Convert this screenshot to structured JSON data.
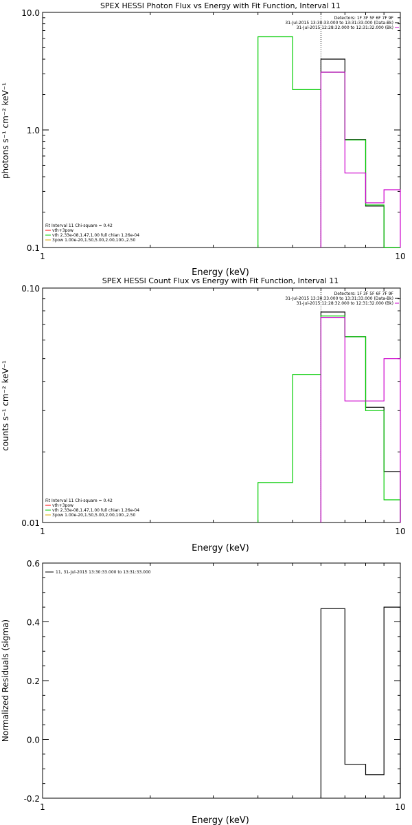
{
  "chart_data": [
    {
      "type": "line",
      "step": true,
      "title": "SPEX HESSI Photon Flux vs Energy with Fit Function, Interval 11",
      "xlabel": "Energy (keV)",
      "ylabel": "photons s⁻¹ cm⁻² keV⁻¹",
      "xscale": "log",
      "yscale": "log",
      "xlim": [
        1,
        10
      ],
      "ylim": [
        0.1,
        10
      ],
      "xticks": [
        {
          "v": 1,
          "label": "1"
        },
        {
          "v": 10,
          "label": "10"
        }
      ],
      "yticks": [
        {
          "v": 0.1,
          "label": "0.1"
        },
        {
          "v": 1,
          "label": "1.0"
        },
        {
          "v": 10,
          "label": "10.0"
        }
      ],
      "vline": 6,
      "header_lines": [
        "Detectors: 1F 3F 5F 6F 7F 9F",
        "31-Jul-2015 13:30:33.000 to 13:31:33.000 (Data-Bk)",
        "31-Jul-2015 12:28:32.000 to 12:31:32.000 (Bk)"
      ],
      "legend_lines": [
        "Fit Interval 11    Chi-square = 0.42",
        "vth+3pow",
        "vth 2.33e-08,1.47,1.00  full chian 1.26e-04",
        "3pow 1.00e-20,1.50,5.00,2.00,100.,2.50"
      ],
      "series": [
        {
          "color": "#000000",
          "edges": [
            6,
            7,
            8,
            9,
            10
          ],
          "values": [
            4.0,
            0.83,
            0.225,
            0.1
          ]
        },
        {
          "color": "#00cc00",
          "edges": [
            4,
            5,
            6,
            7,
            8,
            9,
            10
          ],
          "values": [
            6.2,
            2.2,
            3.1,
            0.82,
            0.23,
            0.1
          ]
        },
        {
          "color": "#cc00cc",
          "edges": [
            6,
            7,
            8,
            9,
            10
          ],
          "values": [
            3.1,
            0.43,
            0.24,
            0.31
          ]
        }
      ]
    },
    {
      "type": "line",
      "step": true,
      "title": "SPEX HESSI Count Flux vs Energy with Fit Function, Interval 11",
      "xlabel": "Energy (keV)",
      "ylabel": "counts s⁻¹ cm⁻² keV⁻¹",
      "xscale": "log",
      "yscale": "log",
      "xlim": [
        1,
        10
      ],
      "ylim": [
        0.01,
        0.1
      ],
      "xticks": [
        {
          "v": 1,
          "label": "1"
        },
        {
          "v": 10,
          "label": "10"
        }
      ],
      "yticks": [
        {
          "v": 0.01,
          "label": "0.01"
        },
        {
          "v": 0.1,
          "label": "0.10"
        }
      ],
      "vline": 6,
      "header_lines": [
        "Detectors: 1F 3F 5F 6F 7F 9F",
        "31-Jul-2015 13:30:33.000 to 13:31:33.000 (Data-Bk)",
        "31-Jul-2015 12:28:32.000 to 12:31:32.000 (Bk)"
      ],
      "legend_lines": [
        "Fit Interval 11    Chi-square = 0.42",
        "vth+3pow",
        "vth 2.33e-08,1.47,1.00  full chian 1.26e-04",
        "3pow 1.00e-20,1.50,5.00,2.00,100.,2.50"
      ],
      "series": [
        {
          "color": "#000000",
          "edges": [
            6,
            7,
            8,
            9,
            10
          ],
          "values": [
            0.079,
            0.062,
            0.031,
            0.0165
          ]
        },
        {
          "color": "#00cc00",
          "edges": [
            4,
            5,
            6,
            7,
            8,
            9,
            10
          ],
          "values": [
            0.0148,
            0.0428,
            0.076,
            0.062,
            0.03,
            0.0125
          ]
        },
        {
          "color": "#cc00cc",
          "edges": [
            6,
            7,
            8,
            9,
            10
          ],
          "values": [
            0.075,
            0.033,
            0.033,
            0.05
          ]
        }
      ]
    },
    {
      "type": "line",
      "step": true,
      "title": "",
      "xlabel": "Energy (keV)",
      "ylabel": "Normalized Residuals (sigma)",
      "xscale": "log",
      "yscale": "linear",
      "xlim": [
        1,
        10
      ],
      "ylim": [
        -0.2,
        0.6
      ],
      "xticks": [
        {
          "v": 1,
          "label": "1"
        },
        {
          "v": 10,
          "label": "10"
        }
      ],
      "yticks": [
        {
          "v": -0.2,
          "label": "-0.2"
        },
        {
          "v": 0,
          "label": "0.0"
        },
        {
          "v": 0.2,
          "label": "0.2"
        },
        {
          "v": 0.4,
          "label": "0.4"
        },
        {
          "v": 0.6,
          "label": "0.6"
        }
      ],
      "legend_lines": [
        "11, 31-Jul-2015 13:30:33.000 to 13:31:33.000"
      ],
      "series": [
        {
          "color": "#000000",
          "edges": [
            6,
            7,
            8,
            9,
            10
          ],
          "values": [
            0.445,
            -0.085,
            -0.12,
            0.45
          ]
        }
      ]
    }
  ]
}
